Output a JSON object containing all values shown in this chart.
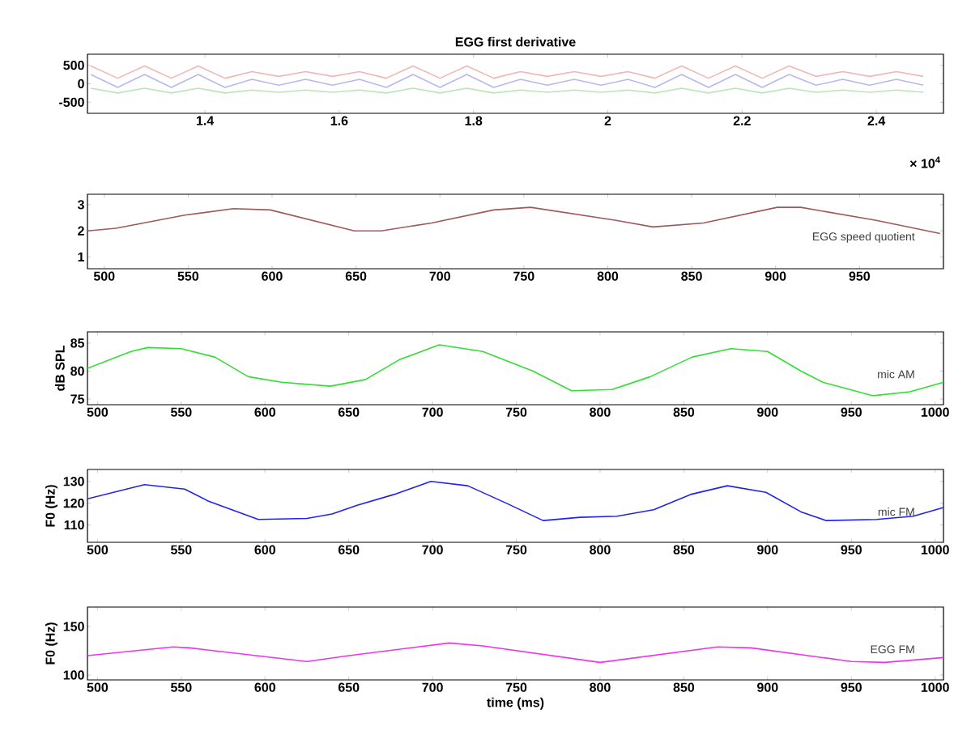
{
  "chart_data": [
    {
      "type": "line",
      "title": "EGG first derivative",
      "annotations": [
        "× 10$^{4}$"
      ],
      "xlim": [
        1.225,
        2.5
      ],
      "xticks": [
        1.4,
        1.6,
        1.8,
        2,
        2.2,
        2.4
      ],
      "ylim": [
        -800,
        800
      ],
      "yticks": [
        -500,
        0,
        500
      ],
      "x": [
        1.23,
        1.27,
        1.31,
        1.35,
        1.39,
        1.43,
        1.47,
        1.51,
        1.55,
        1.59,
        1.63,
        1.67,
        1.71,
        1.75,
        1.79,
        1.83,
        1.87,
        1.91,
        1.95,
        1.99,
        2.03,
        2.07,
        2.11,
        2.15,
        2.19,
        2.23,
        2.27,
        2.31,
        2.35,
        2.39,
        2.43,
        2.47
      ],
      "series": [
        {
          "color": "#f2b6b6",
          "values": [
            480,
            150,
            480,
            150,
            480,
            150,
            330,
            200,
            330,
            200,
            330,
            150,
            480,
            150,
            480,
            150,
            330,
            200,
            330,
            200,
            330,
            150,
            480,
            150,
            480,
            150,
            480,
            200,
            330,
            200,
            330,
            200
          ]
        },
        {
          "color": "#b8b8f0",
          "values": [
            250,
            -100,
            250,
            -100,
            250,
            -100,
            120,
            -40,
            120,
            -40,
            120,
            -100,
            250,
            -100,
            250,
            -100,
            120,
            -40,
            120,
            -40,
            120,
            -100,
            250,
            -100,
            250,
            -100,
            250,
            -40,
            120,
            -40,
            120,
            -40
          ]
        },
        {
          "color": "#b8e6b8",
          "values": [
            -120,
            -250,
            -120,
            -250,
            -120,
            -250,
            -170,
            -230,
            -170,
            -230,
            -170,
            -250,
            -120,
            -250,
            -120,
            -250,
            -170,
            -230,
            -170,
            -230,
            -170,
            -250,
            -120,
            -250,
            -120,
            -250,
            -120,
            -230,
            -170,
            -230,
            -170,
            -230
          ]
        }
      ]
    },
    {
      "type": "line",
      "xlim": [
        490,
        1000
      ],
      "xticks": [
        500,
        550,
        600,
        650,
        700,
        750,
        800,
        850,
        900,
        950
      ],
      "ylim": [
        0.55,
        3.4
      ],
      "yticks": [
        1,
        2,
        3
      ],
      "x": [
        490,
        507,
        548,
        577,
        599,
        649,
        665,
        695,
        732,
        754,
        805,
        827,
        857,
        901,
        915,
        960,
        998
      ],
      "series": [
        {
          "name": "EGG speed quotient",
          "color": "#a05858",
          "values": [
            2.0,
            2.1,
            2.6,
            2.85,
            2.8,
            2.0,
            2.0,
            2.3,
            2.8,
            2.9,
            2.4,
            2.15,
            2.3,
            2.9,
            2.9,
            2.4,
            1.9
          ]
        }
      ]
    },
    {
      "type": "line",
      "ylabel": "dB SPL",
      "xlim": [
        494,
        1005
      ],
      "xticks": [
        500,
        550,
        600,
        650,
        700,
        750,
        800,
        850,
        900,
        950,
        1000
      ],
      "ylim": [
        74,
        87
      ],
      "yticks": [
        75,
        80,
        85
      ],
      "x": [
        494,
        520,
        530,
        550,
        570,
        590,
        610,
        639,
        660,
        680,
        704,
        730,
        760,
        783,
        807,
        830,
        855,
        878,
        900,
        920,
        933,
        963,
        985,
        1005
      ],
      "series": [
        {
          "name": "mic AM",
          "color": "#33dd33",
          "values": [
            80.5,
            83.5,
            84.2,
            84,
            82.5,
            79,
            78,
            77.3,
            78.5,
            82,
            84.7,
            83.5,
            80,
            76.5,
            76.7,
            79,
            82.5,
            84,
            83.5,
            80,
            78,
            75.6,
            76.3,
            78
          ]
        }
      ]
    },
    {
      "type": "line",
      "ylabel": "F0 (Hz)",
      "xlim": [
        494,
        1005
      ],
      "xticks": [
        500,
        550,
        600,
        650,
        700,
        750,
        800,
        850,
        900,
        950,
        1000
      ],
      "ylim": [
        102,
        135.5
      ],
      "yticks": [
        110,
        120,
        130
      ],
      "x": [
        494,
        528,
        552,
        566,
        596,
        625,
        640,
        655,
        677,
        699,
        721,
        744,
        766,
        788,
        810,
        832,
        854,
        876,
        899,
        920,
        935,
        965,
        987,
        1005
      ],
      "series": [
        {
          "name": "mic FM",
          "color": "#2222ee",
          "values": [
            122,
            128.5,
            126.5,
            121,
            112.5,
            113,
            115,
            119,
            124,
            130,
            128,
            120,
            112,
            113.5,
            114,
            117,
            124,
            128,
            125,
            116,
            112,
            112.5,
            114,
            118
          ]
        }
      ]
    },
    {
      "type": "line",
      "ylabel": "F0 (Hz)",
      "xlabel": "time (ms)",
      "xlim": [
        494,
        1005
      ],
      "xticks": [
        500,
        550,
        600,
        650,
        700,
        750,
        800,
        850,
        900,
        950,
        1000
      ],
      "ylim": [
        95,
        170
      ],
      "yticks": [
        100,
        150
      ],
      "x": [
        494,
        545,
        555,
        625,
        650,
        710,
        730,
        800,
        870,
        890,
        950,
        970,
        1005
      ],
      "series": [
        {
          "name": "EGG FM",
          "color": "#ee33ee",
          "values": [
            120,
            129,
            128,
            114,
            120,
            133,
            130,
            113,
            129,
            128,
            114,
            113,
            118
          ]
        }
      ]
    }
  ]
}
